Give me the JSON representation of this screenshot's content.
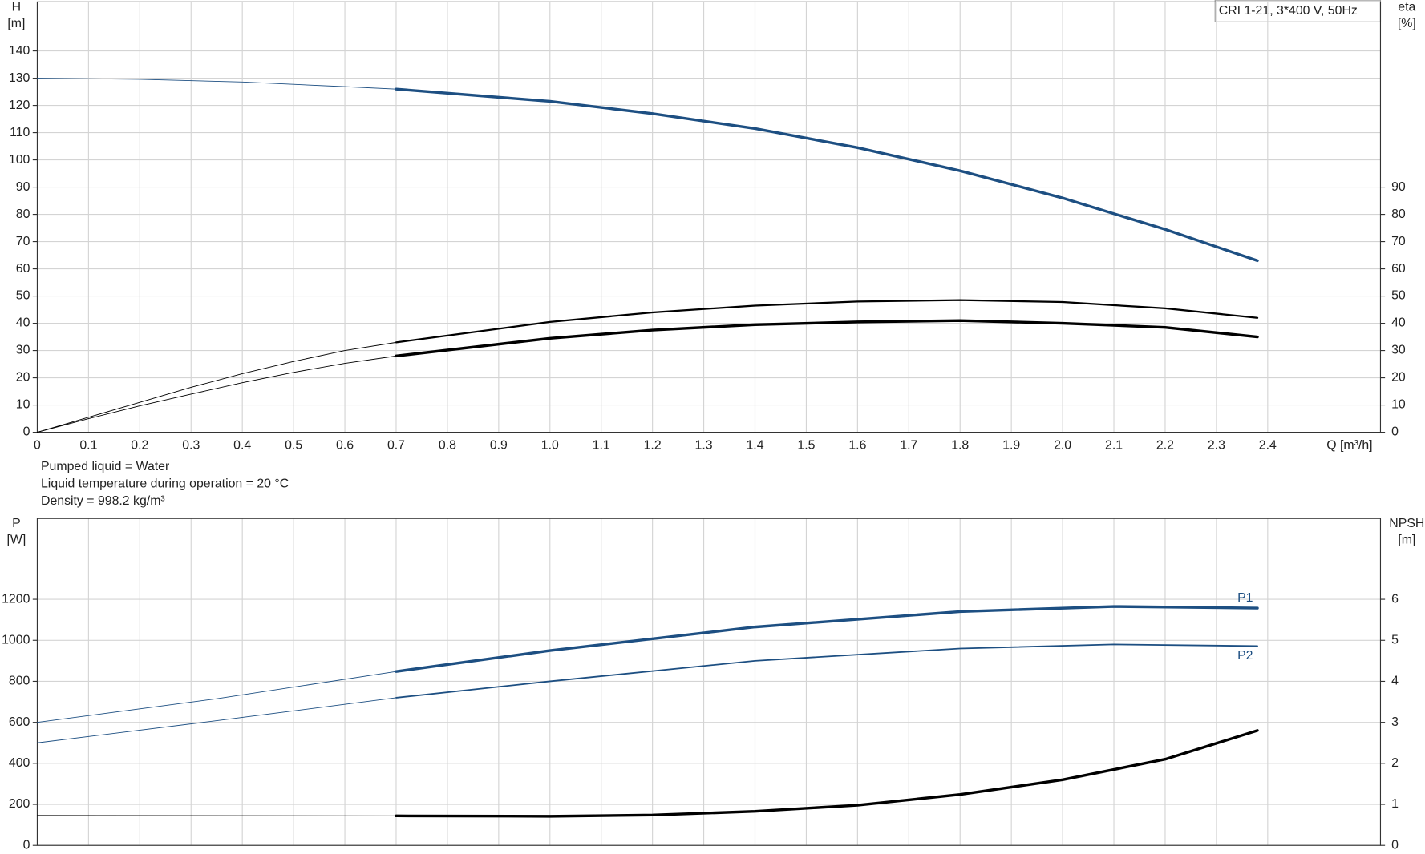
{
  "chart_data": [
    {
      "type": "line",
      "title": "CRI 1-21, 3*400 V, 50Hz",
      "ylabel": "H",
      "yunit": "[m]",
      "y2label": "eta",
      "y2unit": "[%]",
      "xlabel": "Q [m³/h]",
      "xlim": [
        0,
        2.62
      ],
      "xticks": [
        0,
        0.1,
        0.2,
        0.3,
        0.4,
        0.5,
        0.6,
        0.7,
        0.8,
        0.9,
        {
          "value": 1,
          "label": "1.0"
        },
        1.1,
        1.2,
        1.3,
        1.4,
        1.5,
        1.6,
        1.7,
        1.8,
        1.9,
        {
          "value": 2,
          "label": "2.0"
        },
        2.1,
        2.2,
        2.3,
        2.4
      ],
      "ylim": [
        0,
        158
      ],
      "yticks": [
        0,
        10,
        20,
        30,
        40,
        50,
        60,
        70,
        80,
        90,
        100,
        110,
        120,
        130,
        140
      ],
      "y2lim": [
        0,
        158
      ],
      "y2ticks": [
        0,
        10,
        20,
        30,
        40,
        50,
        60,
        70,
        80,
        90
      ],
      "grid": true,
      "series": [
        {
          "color": "#1d4f82",
          "width": 0.8,
          "x": [
            0,
            0.2,
            0.4,
            0.6,
            0.7
          ],
          "values": [
            130,
            129.6,
            128.6,
            126.9,
            126
          ]
        },
        {
          "color": "#1d4f82",
          "width": 3,
          "x": [
            0.7,
            1.0,
            1.2,
            1.4,
            1.6,
            1.8,
            2.0,
            2.2,
            2.38
          ],
          "values": [
            126,
            121.5,
            117,
            111.5,
            104.5,
            96,
            86,
            74.5,
            63
          ]
        },
        {
          "color": "#000000",
          "width": 0.8,
          "axis": "y2",
          "x": [
            0,
            0.1,
            0.2,
            0.3,
            0.4,
            0.5,
            0.6,
            0.7
          ],
          "values": [
            0,
            5.5,
            11,
            16.5,
            21.5,
            26,
            30,
            33
          ]
        },
        {
          "color": "#000000",
          "width": 2,
          "axis": "y2",
          "x": [
            0.7,
            1.0,
            1.2,
            1.4,
            1.6,
            1.8,
            2.0,
            2.2,
            2.38
          ],
          "values": [
            33,
            40.5,
            44,
            46.5,
            48,
            48.5,
            47.8,
            45.5,
            42
          ]
        },
        {
          "color": "#000000",
          "width": 0.8,
          "axis": "y2",
          "x": [
            0,
            0.1,
            0.2,
            0.3,
            0.4,
            0.5,
            0.6,
            0.7
          ],
          "values": [
            0,
            5,
            9.7,
            14,
            18.2,
            22,
            25.3,
            28
          ]
        },
        {
          "color": "#000000",
          "width": 3,
          "axis": "y2",
          "x": [
            0.7,
            1.0,
            1.2,
            1.4,
            1.6,
            1.8,
            2.0,
            2.2,
            2.38
          ],
          "values": [
            28,
            34.5,
            37.5,
            39.5,
            40.5,
            41,
            40,
            38.5,
            35
          ]
        }
      ]
    },
    {
      "type": "line",
      "ylabel": "P",
      "yunit": "[W]",
      "y2label": "NPSH",
      "y2unit": "[m]",
      "xlim": [
        0,
        2.62
      ],
      "ylim": [
        0,
        1594
      ],
      "yticks": [
        0,
        200,
        400,
        600,
        800,
        1000,
        1200
      ],
      "y2lim": [
        0,
        7.97
      ],
      "y2ticks": [
        0,
        1,
        2,
        3,
        4,
        5,
        6
      ],
      "grid": true,
      "series": [
        {
          "color": "#1d4f82",
          "width": 0.8,
          "x": [
            0,
            0.35,
            0.7
          ],
          "values": [
            600,
            715,
            848
          ]
        },
        {
          "name": "P1",
          "color": "#1d4f82",
          "width": 3,
          "x": [
            0.7,
            1.0,
            1.4,
            1.8,
            2.1,
            2.38
          ],
          "values": [
            848,
            950,
            1065,
            1140,
            1165,
            1157
          ]
        },
        {
          "color": "#1d4f82",
          "width": 0.8,
          "x": [
            0,
            0.35,
            0.7
          ],
          "values": [
            500,
            608,
            720
          ]
        },
        {
          "name": "P2",
          "color": "#1d4f82",
          "width": 1.6,
          "x": [
            0.7,
            1.0,
            1.4,
            1.8,
            2.1,
            2.38
          ],
          "values": [
            720,
            800,
            900,
            960,
            980,
            972
          ]
        },
        {
          "color": "#000000",
          "width": 0.8,
          "axis": "y2",
          "x": [
            0,
            0.7
          ],
          "values": [
            0.73,
            0.72
          ]
        },
        {
          "color": "#000000",
          "width": 3,
          "axis": "y2",
          "x": [
            0.7,
            1.0,
            1.2,
            1.4,
            1.6,
            1.8,
            2.0,
            2.2,
            2.38
          ],
          "values": [
            0.72,
            0.71,
            0.74,
            0.83,
            0.98,
            1.24,
            1.6,
            2.1,
            2.8
          ]
        }
      ]
    }
  ],
  "notes": [
    "Pumped liquid = Water",
    "Liquid temperature during operation = 20 °C",
    "Density = 998.2 kg/m³"
  ]
}
